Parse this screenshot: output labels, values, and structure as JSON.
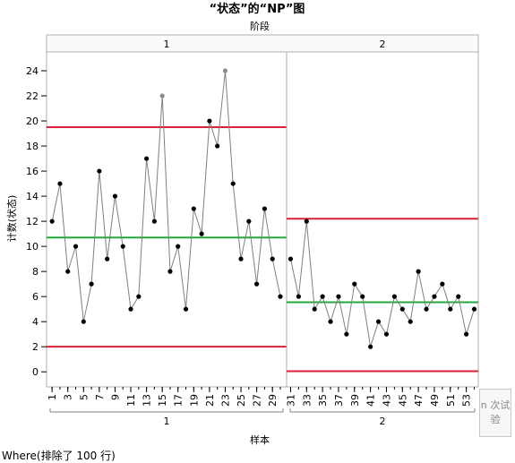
{
  "chart_data": {
    "type": "line",
    "title": "“状态”的“NP”图",
    "phase_label": "阶段",
    "xlabel": "样本",
    "ylabel": "计数(状态)",
    "ylim": [
      -1.2,
      25.5
    ],
    "yticks": [
      0,
      2,
      4,
      6,
      8,
      10,
      12,
      14,
      16,
      18,
      20,
      22,
      24
    ],
    "phases": [
      {
        "name": "1",
        "x": [
          1,
          2,
          3,
          4,
          5,
          6,
          7,
          8,
          9,
          10,
          11,
          12,
          13,
          14,
          15,
          16,
          17,
          18,
          19,
          20,
          21,
          22,
          23,
          24,
          25,
          26,
          27,
          28,
          29,
          30
        ],
        "values": [
          12,
          15,
          8,
          10,
          4,
          7,
          16,
          9,
          14,
          10,
          5,
          6,
          17,
          12,
          22,
          8,
          10,
          5,
          13,
          11,
          20,
          18,
          24,
          15,
          9,
          12,
          7,
          13,
          9,
          6
        ],
        "ucl": 19.5,
        "center": 10.7,
        "lcl": 2.0,
        "xticks": [
          "1",
          "3",
          "5",
          "7",
          "9",
          "11",
          "13",
          "15",
          "17",
          "19",
          "21",
          "23",
          "25",
          "27",
          "29"
        ],
        "gray_points": [
          15,
          23
        ]
      },
      {
        "name": "2",
        "x": [
          31,
          32,
          33,
          34,
          35,
          36,
          37,
          38,
          39,
          40,
          41,
          42,
          43,
          44,
          45,
          46,
          47,
          48,
          49,
          50,
          51,
          52,
          53,
          54
        ],
        "values": [
          9,
          6,
          12,
          5,
          6,
          4,
          6,
          3,
          7,
          6,
          2,
          4,
          3,
          6,
          5,
          4,
          8,
          5,
          6,
          7,
          5,
          6,
          3,
          5
        ],
        "ucl": 12.2,
        "center": 5.55,
        "lcl": 0.05,
        "xticks": [
          "31",
          "33",
          "35",
          "37",
          "39",
          "41",
          "43",
          "45",
          "47",
          "49",
          "51",
          "53"
        ],
        "gray_points": []
      }
    ],
    "colors": {
      "limit": "#d9213a",
      "center": "#22a83a",
      "line": "#808080",
      "point": "#000000",
      "point_highlight": "#8c8c8c"
    }
  },
  "ui": {
    "test_button_line1": "n 次试",
    "test_button_line2": "验",
    "footer": "Where(排除了 100 行)"
  }
}
